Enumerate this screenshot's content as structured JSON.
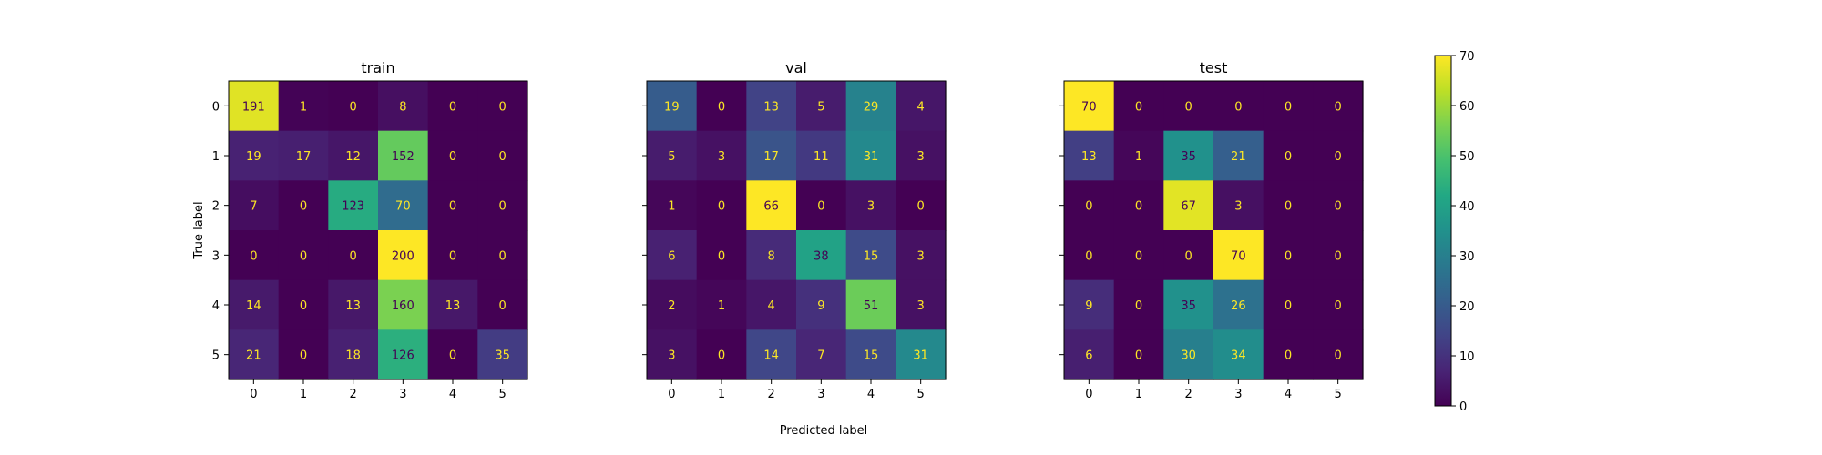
{
  "chart_data": [
    {
      "type": "heatmap",
      "title": "train",
      "ylabel": "True label",
      "xlabel": "",
      "x_ticks": [
        "0",
        "1",
        "2",
        "3",
        "4",
        "5"
      ],
      "y_ticks": [
        "0",
        "1",
        "2",
        "3",
        "4",
        "5"
      ],
      "values": [
        [
          191,
          1,
          0,
          8,
          0,
          0
        ],
        [
          19,
          17,
          12,
          152,
          0,
          0
        ],
        [
          7,
          0,
          123,
          70,
          0,
          0
        ],
        [
          0,
          0,
          0,
          200,
          0,
          0
        ],
        [
          14,
          0,
          13,
          160,
          13,
          0
        ],
        [
          21,
          0,
          18,
          126,
          0,
          35
        ]
      ]
    },
    {
      "type": "heatmap",
      "title": "val",
      "ylabel": "",
      "xlabel": "Predicted label",
      "x_ticks": [
        "0",
        "1",
        "2",
        "3",
        "4",
        "5"
      ],
      "y_ticks": [],
      "values": [
        [
          19,
          0,
          13,
          5,
          29,
          4
        ],
        [
          5,
          3,
          17,
          11,
          31,
          3
        ],
        [
          1,
          0,
          66,
          0,
          3,
          0
        ],
        [
          6,
          0,
          8,
          38,
          15,
          3
        ],
        [
          2,
          1,
          4,
          9,
          51,
          3
        ],
        [
          3,
          0,
          14,
          7,
          15,
          31
        ]
      ]
    },
    {
      "type": "heatmap",
      "title": "test",
      "ylabel": "",
      "xlabel": "",
      "x_ticks": [
        "0",
        "1",
        "2",
        "3",
        "4",
        "5"
      ],
      "y_ticks": [],
      "values": [
        [
          70,
          0,
          0,
          0,
          0,
          0
        ],
        [
          13,
          1,
          35,
          21,
          0,
          0
        ],
        [
          0,
          0,
          67,
          3,
          0,
          0
        ],
        [
          0,
          0,
          0,
          70,
          0,
          0
        ],
        [
          9,
          0,
          35,
          26,
          0,
          0
        ],
        [
          6,
          0,
          30,
          34,
          0,
          0
        ]
      ]
    }
  ],
  "colorbar": {
    "ticks": [
      "0",
      "10",
      "20",
      "30",
      "40",
      "50",
      "60",
      "70"
    ],
    "range": [
      0,
      70
    ],
    "colormap": "viridis"
  }
}
